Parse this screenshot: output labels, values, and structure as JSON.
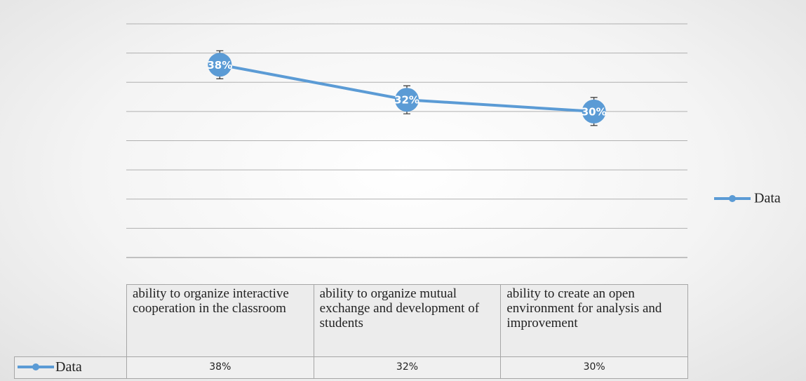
{
  "chart_data": {
    "type": "line",
    "categories": [
      "ability to organize interactive cooperation in the classroom",
      "ability to organize mutual exchange and development of students",
      "ability to create an open environment for analysis and improvement"
    ],
    "series": [
      {
        "name": "Data",
        "color": "#5b9bd5",
        "values": [
          38,
          32,
          30
        ],
        "value_labels": [
          "38%",
          "32%",
          "30%"
        ],
        "errors": [
          2.4,
          2.4,
          2.4
        ]
      }
    ],
    "ylim": [
      5,
      45
    ],
    "yticks": [
      5,
      10,
      15,
      20,
      25,
      30,
      35,
      40,
      45
    ],
    "grid": true,
    "legend": "right",
    "data_table": true
  }
}
